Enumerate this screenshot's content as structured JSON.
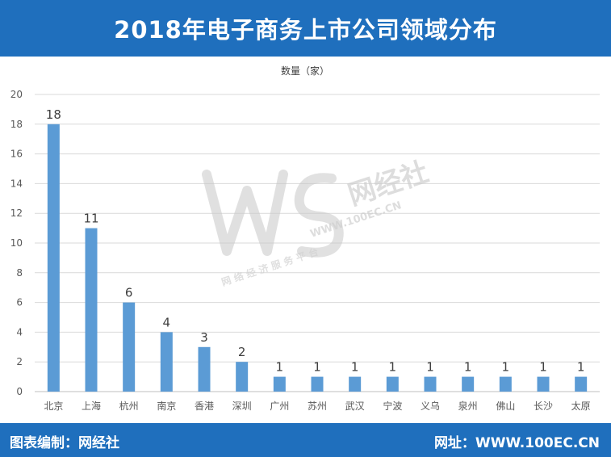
{
  "header": {
    "title": "2018年电子商务上市公司领域分布"
  },
  "footer": {
    "left_text": "图表编制：网经社",
    "right_text": "网址：WWW.100EC.CN"
  },
  "watermark": {
    "logo": "WS",
    "name": "网经社",
    "url": "WWW.100EC.CN",
    "slogan": "网 络 经 济 服 务 平 台"
  },
  "colors": {
    "bar": "#5b9bd5",
    "header_bg": "#1f6fbd",
    "grid": "#d9d9d9"
  },
  "chart_data": {
    "type": "bar",
    "title": "",
    "xlabel": "",
    "ylabel": "数量（家）",
    "categories": [
      "北京",
      "上海",
      "杭州",
      "南京",
      "香港",
      "深圳",
      "广州",
      "苏州",
      "武汉",
      "宁波",
      "义乌",
      "泉州",
      "佛山",
      "长沙",
      "太原"
    ],
    "values": [
      18,
      11,
      6,
      4,
      3,
      2,
      1,
      1,
      1,
      1,
      1,
      1,
      1,
      1,
      1
    ],
    "ylim": [
      0,
      20
    ],
    "yticks": [
      0,
      2,
      4,
      6,
      8,
      10,
      12,
      14,
      16,
      18,
      20
    ],
    "grid": true,
    "legend": "none"
  }
}
